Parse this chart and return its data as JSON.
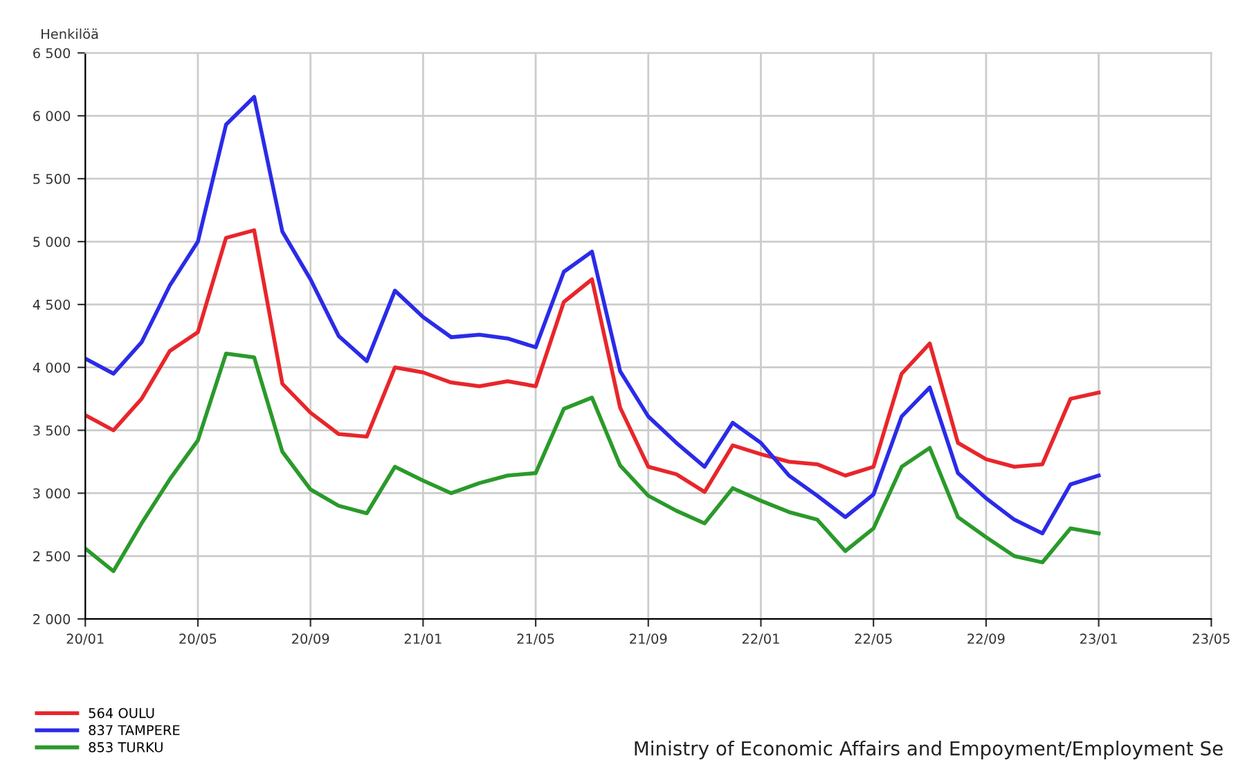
{
  "chart_data": {
    "type": "line",
    "ylabel": "Henkilöä",
    "categories": [
      "20/01",
      null,
      null,
      null,
      "20/05",
      null,
      null,
      null,
      "20/09",
      null,
      null,
      null,
      "21/01",
      null,
      null,
      null,
      "21/05",
      null,
      null,
      null,
      "21/09",
      null,
      null,
      null,
      "22/01",
      null,
      null,
      null,
      "22/05",
      null,
      null,
      null,
      "22/09",
      null,
      null,
      null,
      "23/01",
      null,
      null,
      null,
      "23/05"
    ],
    "series": [
      {
        "name": "564 OULU",
        "color": "#e8262b",
        "values": [
          3620,
          3500,
          3750,
          4130,
          4280,
          5030,
          5090,
          3870,
          3640,
          3470,
          3450,
          4000,
          3960,
          3880,
          3850,
          3890,
          3850,
          4520,
          4700,
          3680,
          3210,
          3150,
          3010,
          3380,
          3310,
          3250,
          3230,
          3140,
          3210,
          3950,
          4190,
          3400,
          3270,
          3210,
          3230,
          3750,
          3800,
          null,
          null,
          null,
          null
        ]
      },
      {
        "name": "837 TAMPERE",
        "color": "#2b2be8",
        "values": [
          4070,
          3950,
          4200,
          4650,
          5000,
          5930,
          6150,
          5080,
          4700,
          4250,
          4050,
          4610,
          4400,
          4240,
          4260,
          4230,
          4160,
          4760,
          4920,
          3970,
          3610,
          3400,
          3210,
          3560,
          3400,
          3140,
          2980,
          2810,
          2990,
          3610,
          3840,
          3160,
          2960,
          2790,
          2680,
          3070,
          3140,
          null,
          null,
          null,
          null
        ]
      },
      {
        "name": "853 TURKU",
        "color": "#2a9a2a",
        "values": [
          2560,
          2380,
          2760,
          3110,
          3420,
          4110,
          4080,
          3330,
          3030,
          2900,
          2840,
          3210,
          3100,
          3000,
          3080,
          3140,
          3160,
          3670,
          3760,
          3220,
          2980,
          2860,
          2760,
          3040,
          2940,
          2850,
          2790,
          2540,
          2720,
          3210,
          3360,
          2810,
          2650,
          2500,
          2450,
          2720,
          2680,
          null,
          null,
          null,
          null
        ]
      }
    ],
    "ylim": [
      2000,
      6500
    ],
    "yticks": [
      {
        "value": 2000,
        "label": "2 000"
      },
      {
        "value": 2500,
        "label": "2 500"
      },
      {
        "value": 3000,
        "label": "3 000"
      },
      {
        "value": 3500,
        "label": "3 500"
      },
      {
        "value": 4000,
        "label": "4 000"
      },
      {
        "value": 4500,
        "label": "4 500"
      },
      {
        "value": 5000,
        "label": "5 000"
      },
      {
        "value": 5500,
        "label": "5 500"
      },
      {
        "value": 6000,
        "label": "6 000"
      },
      {
        "value": 6500,
        "label": "6 500"
      }
    ],
    "grid": true,
    "legend": "bottom left",
    "marker": "none",
    "line_style": "solid",
    "annotations": [
      "Ministry of Economic Affairs and Empoyment/Employment Se"
    ]
  }
}
